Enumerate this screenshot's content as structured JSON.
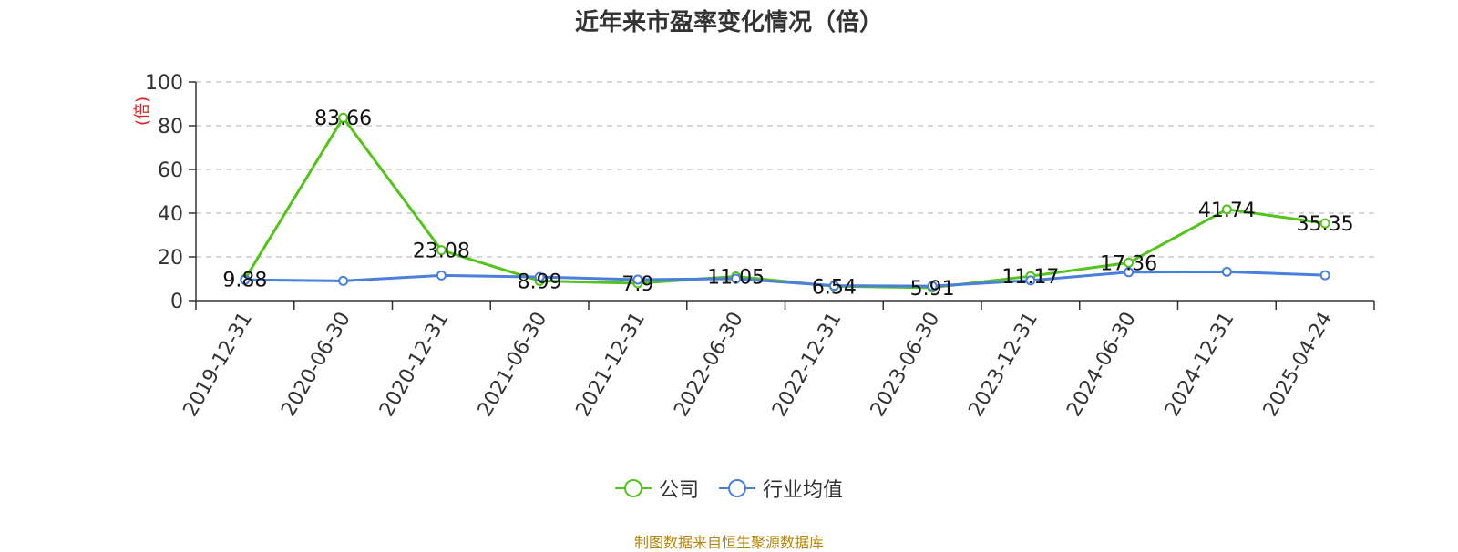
{
  "title": "近年来市盈率变化情况（倍）",
  "source": "制图数据来自恒生聚源数据库",
  "chart_data": {
    "type": "line",
    "title": "近年来市盈率变化情况（倍）",
    "ylabel": "(倍)",
    "ylim": [
      0,
      100
    ],
    "yticks": [
      0,
      20,
      40,
      60,
      80,
      100
    ],
    "grid": true,
    "legend_position": "bottom",
    "categories": [
      "2019-12-31",
      "2020-06-30",
      "2020-12-31",
      "2021-06-30",
      "2021-12-31",
      "2022-06-30",
      "2022-12-31",
      "2023-06-30",
      "2023-12-31",
      "2024-06-30",
      "2024-12-31",
      "2025-04-24"
    ],
    "series": [
      {
        "name": "公司",
        "color": "#52c41a",
        "values": [
          9.88,
          83.66,
          23.08,
          8.99,
          7.9,
          11.05,
          6.54,
          5.91,
          11.17,
          17.36,
          41.74,
          35.35
        ],
        "labels": [
          "9.88",
          "83.66",
          "23.08",
          "8.99",
          "7.9",
          "11.05",
          "6.54",
          "5.91",
          "11.17",
          "17.36",
          "41.74",
          "35.35"
        ]
      },
      {
        "name": "行业均值",
        "color": "#4a7fdc",
        "values": [
          9.5,
          9.0,
          11.5,
          10.8,
          9.6,
          10.0,
          6.8,
          6.6,
          9.2,
          13.0,
          13.2,
          11.6
        ]
      }
    ]
  }
}
